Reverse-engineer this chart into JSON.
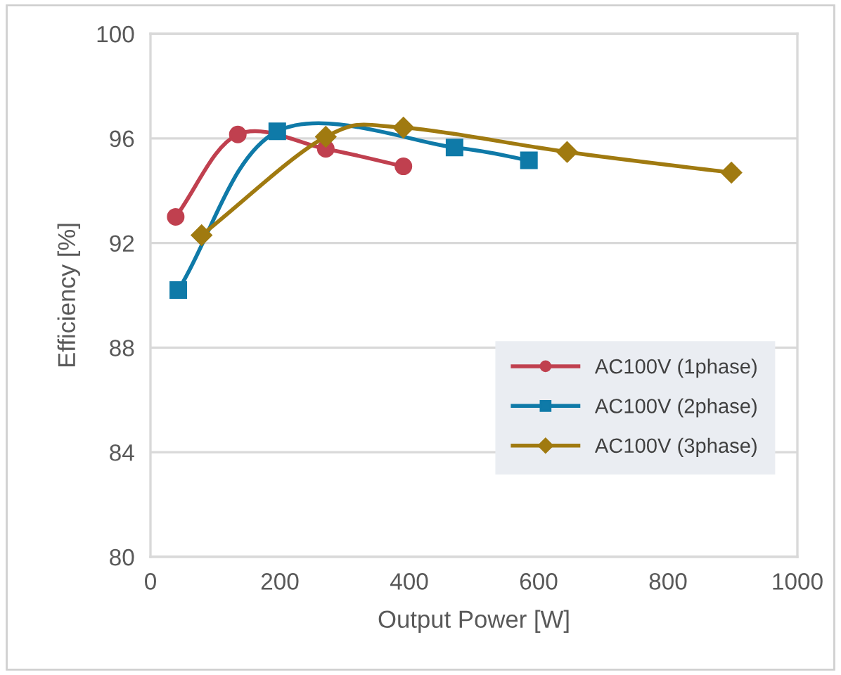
{
  "chart_data": {
    "type": "line",
    "xlabel": "Output Power [W]",
    "ylabel": "Efficiency [%]",
    "xlim": [
      0,
      1000
    ],
    "xticks": [
      0,
      200,
      400,
      600,
      800,
      1000
    ],
    "ylim": [
      80,
      100
    ],
    "yticks": [
      80,
      84,
      88,
      92,
      96,
      100
    ],
    "grid": "y",
    "legend": "bottom right",
    "line_style": "solid",
    "series": [
      {
        "name": "AC100V (1phase)",
        "color": "#c0404f",
        "marker": "circle",
        "x": [
          39,
          135,
          271,
          391
        ],
        "values": [
          93.0,
          96.15,
          95.6,
          94.93
        ]
      },
      {
        "name": "AC100V (2phase)",
        "color": "#0f7aa8",
        "marker": "square",
        "x": [
          43,
          196,
          470,
          585
        ],
        "values": [
          90.2,
          96.27,
          95.65,
          95.16
        ]
      },
      {
        "name": "AC100V (3phase)",
        "color": "#a07a10",
        "marker": "diamond",
        "x": [
          79,
          271,
          391,
          644,
          898
        ],
        "values": [
          92.3,
          96.06,
          96.41,
          95.48,
          94.69
        ]
      }
    ]
  }
}
